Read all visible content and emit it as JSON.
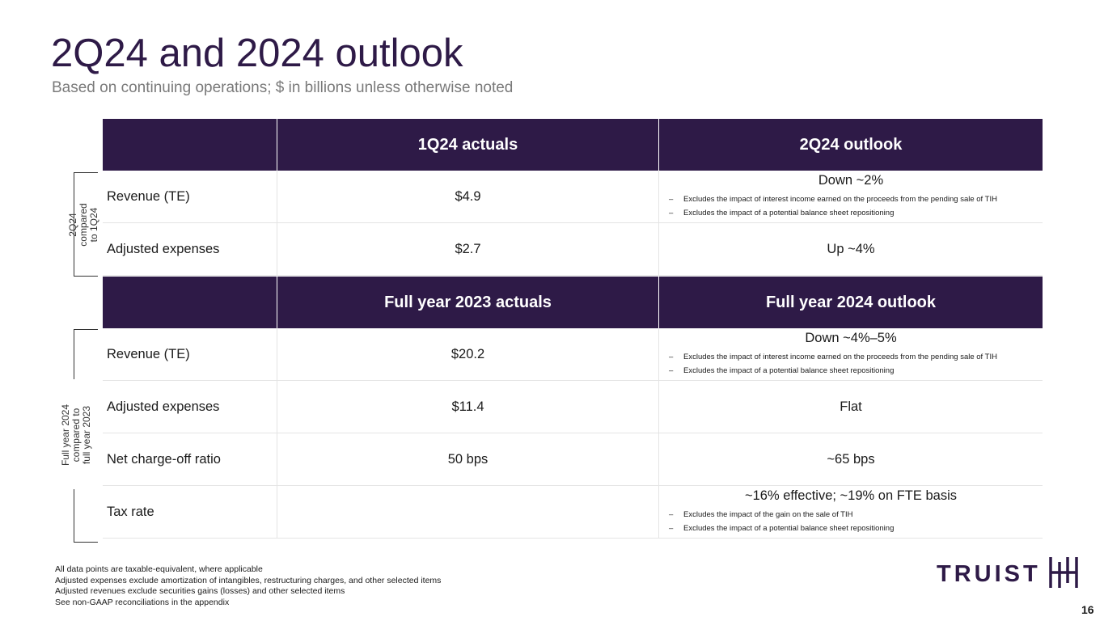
{
  "slide": {
    "title": "2Q24 and 2024 outlook",
    "subtitle": "Based on continuing operations; $ in billions unless otherwise noted",
    "page_number": "16"
  },
  "section1": {
    "side_label_lines": [
      "2Q24",
      "compared",
      "to 1Q24"
    ],
    "header": {
      "col2": "1Q24 actuals",
      "col3": "2Q24 outlook"
    },
    "rows": [
      {
        "label": "Revenue (TE)",
        "actual": "$4.9",
        "outlook": "Down ~2%",
        "notes": [
          "Excludes the impact of interest income earned on the proceeds from the pending sale of TIH",
          "Excludes the impact of a potential balance sheet repositioning"
        ]
      },
      {
        "label": "Adjusted expenses",
        "actual": "$2.7",
        "outlook": "Up ~4%"
      }
    ]
  },
  "section2": {
    "side_label_lines": [
      "Full year 2024",
      "compared to",
      "full year 2023"
    ],
    "header": {
      "col2": "Full year 2023 actuals",
      "col3": "Full year 2024 outlook"
    },
    "rows": [
      {
        "label": "Revenue (TE)",
        "actual": "$20.2",
        "outlook": "Down ~4%–5%",
        "notes": [
          "Excludes the impact of interest income earned on the proceeds from the pending sale of TIH",
          "Excludes the impact of a potential balance sheet repositioning"
        ]
      },
      {
        "label": "Adjusted expenses",
        "actual": "$11.4",
        "outlook": "Flat"
      },
      {
        "label": "Net charge-off ratio",
        "actual": "50 bps",
        "outlook": "~65 bps"
      },
      {
        "label": "Tax rate",
        "actual": "",
        "outlook": "~16% effective; ~19% on FTE basis",
        "notes": [
          "Excludes the impact of the gain on the sale of TIH",
          "Excludes the impact of a potential balance sheet repositioning"
        ]
      }
    ]
  },
  "note_bullet": "–",
  "footnotes": [
    "All data points are taxable-equivalent, where applicable",
    "Adjusted expenses exclude amortization of intangibles, restructuring charges, and other selected items",
    "Adjusted revenues exclude securities gains (losses) and other selected items",
    "See non-GAAP reconciliations in the appendix"
  ],
  "logo": {
    "text": "TRUIST",
    "icon": "truist-hh-mark-icon"
  },
  "colors": {
    "brand_purple": "#2e1a47",
    "grid": "#e4e4e4"
  }
}
